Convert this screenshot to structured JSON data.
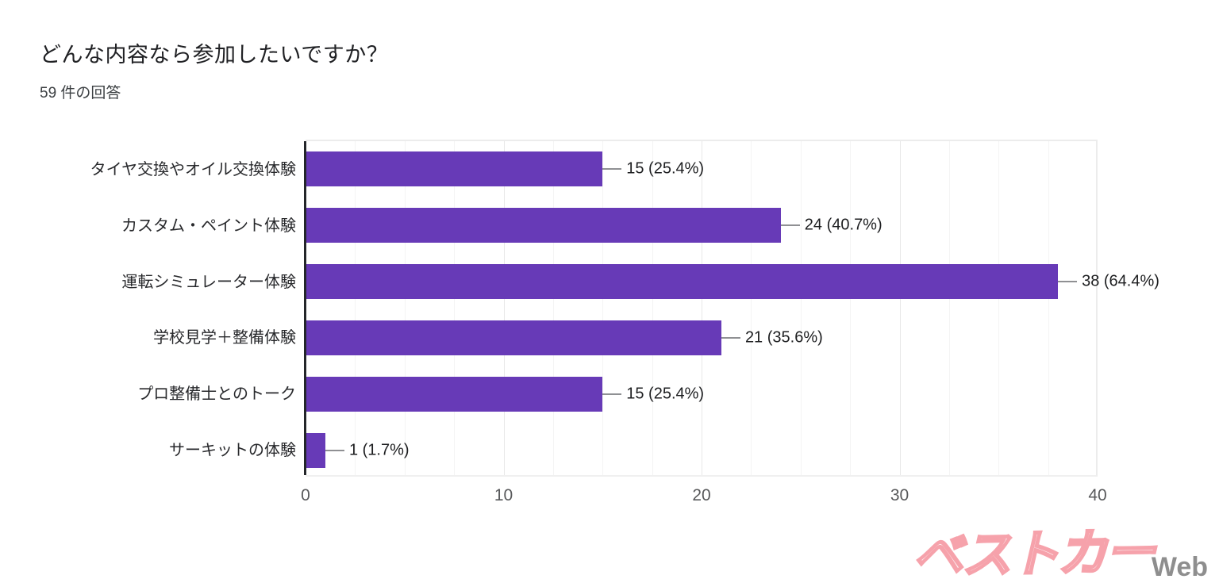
{
  "header": {
    "title": "どんな内容なら参加したいですか？",
    "response_count": "59 件の回答"
  },
  "chart_data": {
    "type": "bar",
    "orientation": "horizontal",
    "title": "どんな内容なら参加したいですか？",
    "subtitle": "59 件の回答",
    "total_responses": 59,
    "categories": [
      "タイヤ交換やオイル交換体験",
      "カスタム・ペイント体験",
      "運転シミュレーター体験",
      "学校見学＋整備体験",
      "プロ整備士とのトーク",
      "サーキットの体験"
    ],
    "values": [
      15,
      24,
      38,
      21,
      15,
      1
    ],
    "value_labels": [
      "15 (25.4%)",
      "24 (40.7%)",
      "38 (64.4%)",
      "21 (35.6%)",
      "15 (25.4%)",
      "1 (1.7%)"
    ],
    "xlim": [
      0,
      40
    ],
    "xticks": [
      0,
      10,
      20,
      30,
      40
    ],
    "minor_grid_step": 2.5,
    "grid": true,
    "legend": "none",
    "bar_color": "#673ab7",
    "axis_line_color": "#24262a",
    "tick_label_color": "#58595b"
  },
  "watermark": {
    "brand": "ベストカー",
    "suffix": "Web",
    "brand_color": "#f6a2ab",
    "suffix_color": "#8e8e8e"
  }
}
